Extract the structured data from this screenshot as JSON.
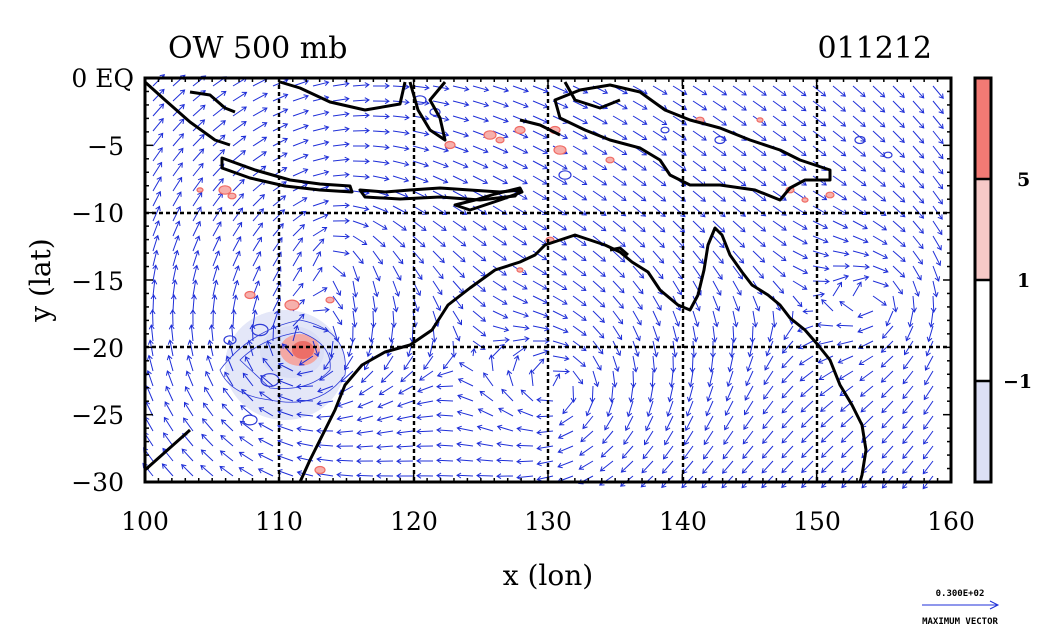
{
  "header": {
    "title": "OW 500 mb",
    "date": "011212"
  },
  "axes": {
    "xlabel": "x (lon)",
    "ylabel": "y (lat)",
    "x_ticks": [
      "100",
      "110",
      "120",
      "130",
      "140",
      "150",
      "160"
    ],
    "y_ticks": [
      "0 EQ",
      "−5",
      "−10",
      "−15",
      "−20",
      "−25",
      "−30"
    ],
    "xlim": [
      100,
      160
    ],
    "ylim": [
      -30,
      0
    ]
  },
  "colorbar": {
    "labels": [
      "5",
      "1",
      "−1"
    ],
    "segments": [
      {
        "color": "#f27a74"
      },
      {
        "color": "#f6c9c7"
      },
      {
        "color": "#ffffff"
      },
      {
        "color": "#dcdff5"
      }
    ]
  },
  "reference_vector": {
    "value": "0.300E+02",
    "label": "MAXIMUM VECTOR"
  },
  "colors": {
    "coast": "#000000",
    "vectors": "#1f2fd8",
    "positive": "#f06b64",
    "negative": "#2d3ad6"
  },
  "chart_data": {
    "type": "map",
    "field": "Okubo-Weiss parameter, 500 mb wind vectors",
    "grid": true,
    "grid_lon": [
      110,
      120,
      130,
      140,
      150
    ],
    "grid_lat": [
      -10,
      -20
    ],
    "contour_levels": [
      -1,
      1,
      5
    ],
    "vortex_center": {
      "lon": 111.5,
      "lat": -20
    }
  }
}
